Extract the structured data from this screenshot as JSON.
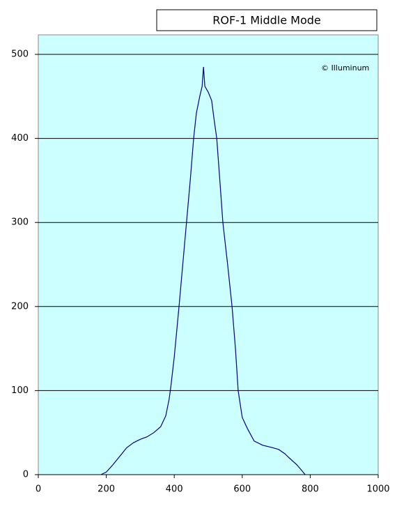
{
  "chart_data": {
    "type": "line",
    "title": "ROF-1 Middle Mode",
    "annotation": "© Illuminum",
    "x": [
      184,
      200,
      220,
      240,
      260,
      280,
      300,
      320,
      340,
      360,
      375,
      385,
      390,
      400,
      414,
      425,
      436,
      447,
      457,
      465,
      475,
      482,
      486,
      490,
      500,
      510,
      518,
      525,
      535,
      543,
      557,
      570,
      580,
      588,
      600,
      615,
      635,
      660,
      690,
      707,
      725,
      738,
      760,
      775,
      785
    ],
    "values": [
      0,
      3,
      12,
      22,
      32,
      38,
      42,
      45,
      50,
      57,
      70,
      90,
      105,
      140,
      200,
      250,
      300,
      350,
      400,
      430,
      450,
      462,
      485,
      462,
      455,
      445,
      420,
      400,
      345,
      300,
      250,
      200,
      150,
      100,
      68,
      55,
      40,
      35,
      32,
      30,
      25,
      20,
      12,
      5,
      0
    ],
    "color": "#000080",
    "background": "#ccffff",
    "xlim": [
      0,
      1000
    ],
    "xticks": [
      0,
      200,
      400,
      600,
      800,
      1000
    ],
    "ylim": [
      0,
      500
    ],
    "yticks": [
      0,
      100,
      200,
      300,
      400,
      500
    ],
    "grid": true
  }
}
